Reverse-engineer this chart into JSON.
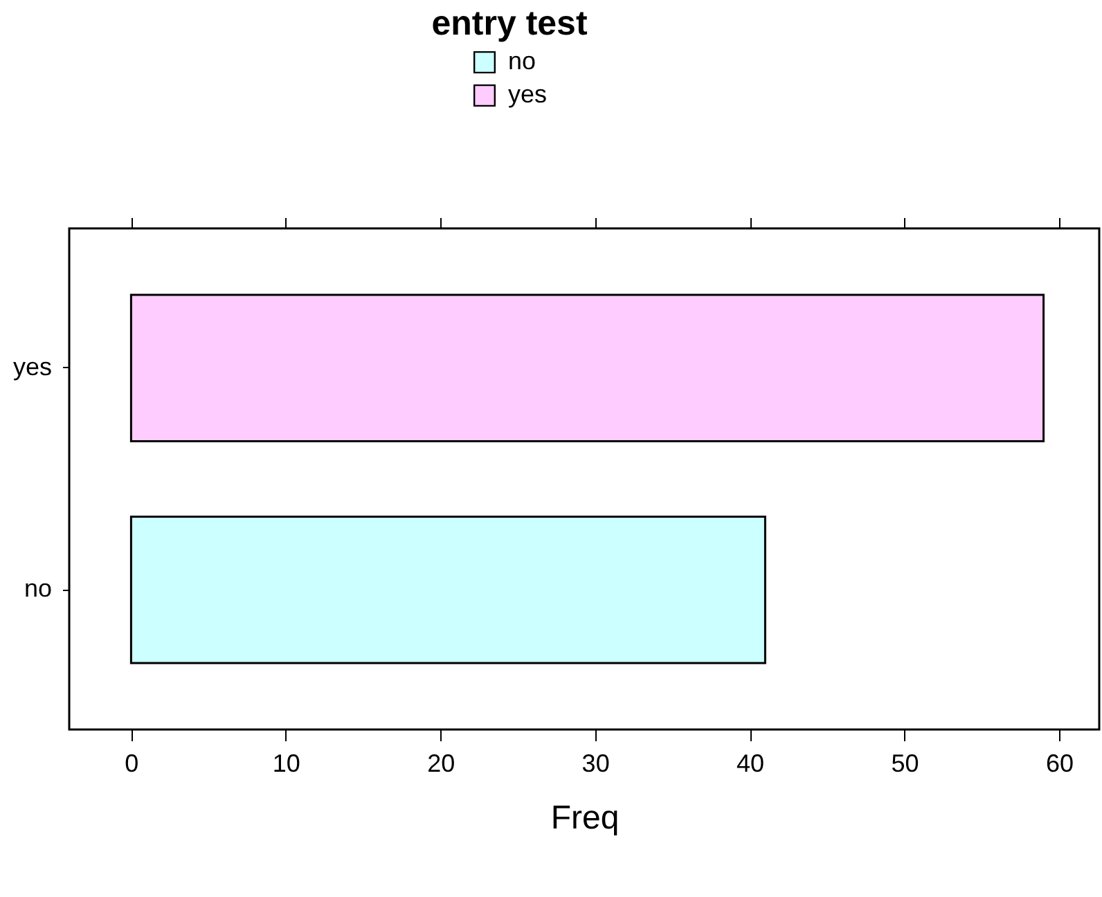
{
  "chart_data": {
    "type": "bar",
    "orientation": "horizontal",
    "stacked": true,
    "legend_title": "entry test",
    "xlabel": "Freq",
    "categories": [
      "yes",
      "no"
    ],
    "series": [
      {
        "name": "no",
        "color": "#ccffff",
        "values": [
          null,
          41
        ]
      },
      {
        "name": "yes",
        "color": "#ffccff",
        "values": [
          59,
          null
        ]
      }
    ],
    "xlim": [
      -4,
      62.6
    ],
    "xticks": [
      0,
      10,
      20,
      30,
      40,
      50,
      60
    ],
    "legend": "top",
    "grid": false
  }
}
